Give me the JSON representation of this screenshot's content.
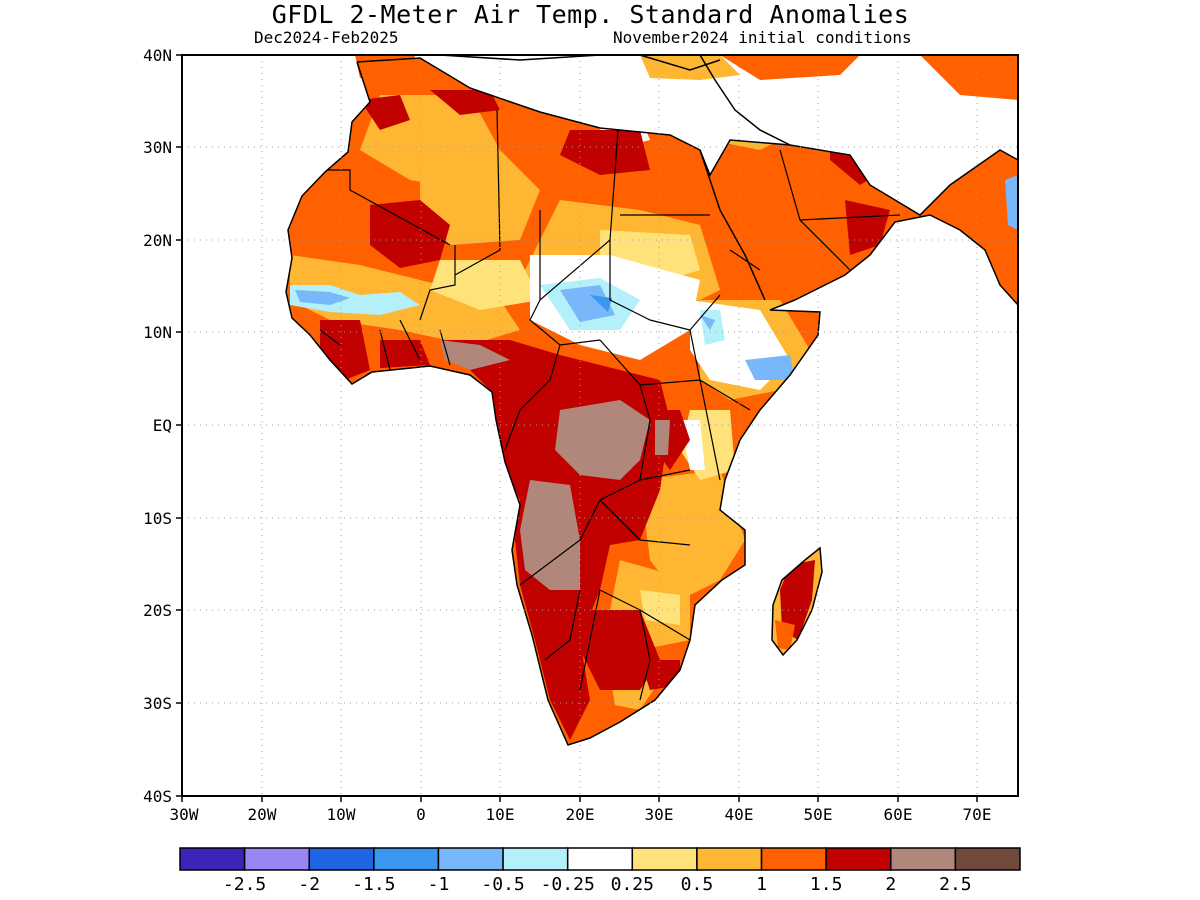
{
  "title": "GFDL 2-Meter Air Temp. Standard Anomalies",
  "subtitle_left": "Dec2024-Feb2025",
  "subtitle_right": "November2024 initial conditions",
  "map": {
    "region": "Africa",
    "lat_range": [
      -40,
      40
    ],
    "lon_range": [
      -30,
      75
    ],
    "x_ticks": [
      "30W",
      "20W",
      "10W",
      "0",
      "10E",
      "20E",
      "30E",
      "40E",
      "50E",
      "60E",
      "70E"
    ],
    "y_ticks": [
      "40N",
      "30N",
      "20N",
      "10N",
      "EQ",
      "10S",
      "20S",
      "30S",
      "40S"
    ],
    "grid": "dotted"
  },
  "colorbar": {
    "colors": [
      "#3b24b8",
      "#9a85f5",
      "#1f64e5",
      "#3b96f0",
      "#78b7f9",
      "#b4f0fa",
      "#ffffff",
      "#ffe37a",
      "#ffb733",
      "#ff6000",
      "#c10000",
      "#b0877a",
      "#6f4a3d"
    ],
    "labels": [
      "-2.5",
      "-2",
      "-1.5",
      "-1",
      "-0.5",
      "-0.25",
      "0.25",
      "0.5",
      "1",
      "1.5",
      "2",
      "2.5"
    ]
  }
}
